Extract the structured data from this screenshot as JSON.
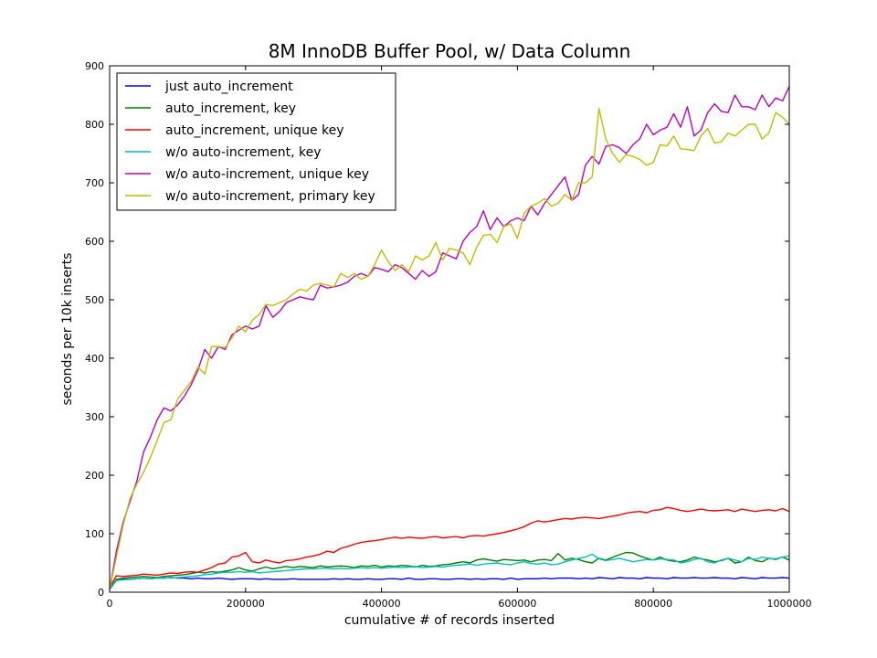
{
  "chart_data": {
    "type": "line",
    "title": "8M InnoDB Buffer Pool, w/ Data Column",
    "xlabel": "cumulative # of records inserted",
    "ylabel": "seconds per 10k inserts",
    "xlim": [
      0,
      1000000
    ],
    "ylim": [
      0,
      900
    ],
    "xticks": [
      0,
      200000,
      400000,
      600000,
      800000,
      1000000
    ],
    "xtick_labels": [
      "0",
      "200000",
      "400000",
      "600000",
      "800000",
      "1000000"
    ],
    "yticks": [
      0,
      100,
      200,
      300,
      400,
      500,
      600,
      700,
      800,
      900
    ],
    "ytick_labels": [
      "0",
      "100",
      "200",
      "300",
      "400",
      "500",
      "600",
      "700",
      "800",
      "900"
    ],
    "grid": false,
    "legend_position": "top-left",
    "x": [
      0,
      10000,
      20000,
      30000,
      40000,
      50000,
      60000,
      70000,
      80000,
      90000,
      100000,
      110000,
      120000,
      130000,
      140000,
      150000,
      160000,
      170000,
      180000,
      190000,
      200000,
      210000,
      220000,
      230000,
      240000,
      250000,
      260000,
      270000,
      280000,
      290000,
      300000,
      310000,
      320000,
      330000,
      340000,
      350000,
      360000,
      370000,
      380000,
      390000,
      400000,
      410000,
      420000,
      430000,
      440000,
      450000,
      460000,
      470000,
      480000,
      490000,
      500000,
      510000,
      520000,
      530000,
      540000,
      550000,
      560000,
      570000,
      580000,
      590000,
      600000,
      610000,
      620000,
      630000,
      640000,
      650000,
      660000,
      670000,
      680000,
      690000,
      700000,
      710000,
      720000,
      730000,
      740000,
      750000,
      760000,
      770000,
      780000,
      790000,
      800000,
      810000,
      820000,
      830000,
      840000,
      850000,
      860000,
      870000,
      880000,
      890000,
      900000,
      910000,
      920000,
      930000,
      940000,
      950000,
      960000,
      970000,
      980000,
      990000,
      1000000
    ],
    "series": [
      {
        "name": "just auto_increment",
        "color": "#0000ff",
        "values": [
          5,
          20,
          22,
          22,
          23,
          24,
          23,
          24,
          24,
          25,
          24,
          24,
          23,
          24,
          23,
          23,
          24,
          23,
          22,
          23,
          23,
          23,
          22,
          23,
          22,
          22,
          22,
          23,
          22,
          22,
          22,
          22,
          22,
          23,
          22,
          23,
          22,
          22,
          23,
          22,
          22,
          23,
          23,
          22,
          24,
          22,
          22,
          23,
          23,
          22,
          22,
          23,
          23,
          22,
          23,
          22,
          23,
          23,
          22,
          24,
          22,
          23,
          23,
          23,
          24,
          23,
          24,
          24,
          24,
          23,
          24,
          23,
          25,
          24,
          23,
          25,
          24,
          24,
          23,
          25,
          24,
          24,
          23,
          25,
          24,
          24,
          25,
          24,
          24,
          25,
          24,
          24,
          23,
          25,
          24,
          23,
          25,
          24,
          24,
          25,
          24
        ]
      },
      {
        "name": "auto_increment, key",
        "color": "#008000",
        "values": [
          5,
          22,
          24,
          25,
          26,
          27,
          26,
          25,
          27,
          28,
          29,
          30,
          32,
          34,
          33,
          35,
          34,
          36,
          38,
          42,
          38,
          36,
          40,
          43,
          40,
          42,
          44,
          42,
          44,
          43,
          42,
          45,
          43,
          44,
          45,
          44,
          42,
          45,
          44,
          46,
          43,
          45,
          44,
          46,
          45,
          43,
          46,
          44,
          45,
          47,
          48,
          50,
          52,
          50,
          55,
          57,
          55,
          53,
          56,
          55,
          54,
          55,
          52,
          55,
          56,
          54,
          66,
          55,
          58,
          56,
          52,
          50,
          58,
          55,
          60,
          64,
          68,
          67,
          62,
          58,
          55,
          60,
          55,
          53,
          52,
          55,
          60,
          57,
          55,
          52,
          54,
          58,
          50,
          52,
          60,
          54,
          52,
          58,
          56,
          60,
          55
        ]
      },
      {
        "name": "auto_increment, unique key",
        "color": "#ff0000",
        "values": [
          8,
          28,
          27,
          28,
          29,
          31,
          30,
          29,
          31,
          33,
          32,
          34,
          35,
          34,
          38,
          42,
          48,
          50,
          60,
          62,
          68,
          52,
          50,
          55,
          52,
          50,
          54,
          55,
          57,
          60,
          62,
          65,
          70,
          68,
          75,
          78,
          82,
          85,
          87,
          88,
          90,
          92,
          94,
          92,
          94,
          93,
          92,
          94,
          95,
          93,
          94,
          95,
          93,
          96,
          97,
          96,
          98,
          100,
          102,
          105,
          108,
          112,
          118,
          122,
          120,
          122,
          124,
          126,
          125,
          127,
          128,
          127,
          126,
          128,
          130,
          132,
          135,
          137,
          138,
          136,
          140,
          141,
          145,
          143,
          140,
          138,
          140,
          142,
          140,
          139,
          140,
          141,
          138,
          142,
          140,
          138,
          140,
          141,
          139,
          143,
          138
        ]
      },
      {
        "name": "w/o auto-increment, key",
        "color": "#00bfbf",
        "values": [
          5,
          20,
          21,
          22,
          23,
          24,
          23,
          24,
          25,
          24,
          25,
          26,
          27,
          28,
          30,
          31,
          33,
          34,
          34,
          35,
          34,
          35,
          33,
          34,
          35,
          36,
          37,
          38,
          39,
          40,
          40,
          41,
          41,
          40,
          41,
          40,
          41,
          42,
          41,
          42,
          41,
          42,
          43,
          42,
          43,
          44,
          42,
          43,
          44,
          43,
          45,
          46,
          47,
          48,
          46,
          48,
          49,
          50,
          48,
          47,
          50,
          52,
          49,
          48,
          50,
          47,
          48,
          52,
          55,
          58,
          60,
          65,
          57,
          54,
          56,
          58,
          55,
          52,
          54,
          56,
          55,
          57,
          56,
          55,
          50,
          52,
          56,
          58,
          52,
          50,
          55,
          58,
          55,
          52,
          58,
          56,
          60,
          58,
          57,
          60,
          62
        ]
      },
      {
        "name": "w/o auto-increment, unique key",
        "color": "#bf00bf",
        "values": [
          5,
          70,
          120,
          155,
          190,
          240,
          265,
          295,
          315,
          310,
          320,
          335,
          355,
          380,
          415,
          400,
          420,
          415,
          440,
          448,
          455,
          450,
          455,
          490,
          470,
          480,
          495,
          500,
          505,
          502,
          500,
          525,
          520,
          522,
          525,
          530,
          540,
          545,
          540,
          555,
          552,
          548,
          560,
          555,
          545,
          535,
          550,
          540,
          548,
          580,
          575,
          570,
          600,
          615,
          625,
          652,
          620,
          640,
          625,
          635,
          640,
          635,
          660,
          645,
          665,
          680,
          695,
          710,
          670,
          680,
          730,
          745,
          732,
          762,
          765,
          760,
          750,
          765,
          775,
          800,
          782,
          790,
          795,
          818,
          795,
          830,
          780,
          790,
          820,
          835,
          822,
          820,
          850,
          830,
          830,
          825,
          850,
          830,
          845,
          840,
          865
        ]
      },
      {
        "name": "w/o auto-increment, primary key",
        "color": "#bfbf00",
        "values": [
          5,
          60,
          115,
          160,
          185,
          205,
          230,
          260,
          290,
          295,
          330,
          345,
          360,
          385,
          373,
          420,
          420,
          418,
          435,
          455,
          445,
          465,
          475,
          492,
          490,
          495,
          500,
          510,
          518,
          515,
          525,
          528,
          525,
          522,
          545,
          538,
          545,
          535,
          540,
          560,
          585,
          565,
          550,
          560,
          548,
          575,
          568,
          575,
          598,
          568,
          588,
          585,
          580,
          560,
          590,
          610,
          612,
          598,
          625,
          630,
          605,
          648,
          660,
          665,
          673,
          660,
          665,
          680,
          670,
          700,
          700,
          710,
          827,
          775,
          750,
          735,
          748,
          745,
          740,
          730,
          735,
          765,
          763,
          780,
          758,
          757,
          755,
          780,
          793,
          768,
          770,
          785,
          780,
          790,
          800,
          800,
          775,
          785,
          820,
          812,
          800
        ]
      }
    ]
  }
}
